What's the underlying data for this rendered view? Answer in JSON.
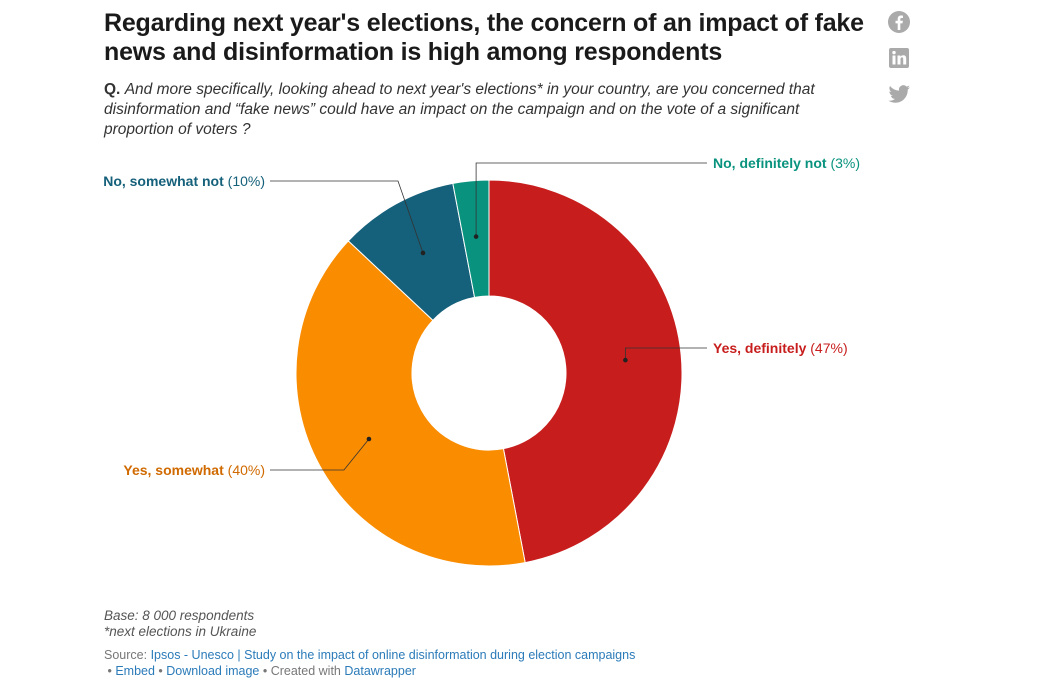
{
  "header": {
    "title": "Regarding next year's elections, the concern of an impact of fake news and disinformation is high among respondents",
    "question_prefix": "Q.",
    "question_text": "And more specifically, looking ahead to next year's elections* in your country, are you concerned that disinformation and “fake news” could have an impact on the campaign and on the vote of a significant proportion of voters ?"
  },
  "social": {
    "facebook_icon": "facebook-icon",
    "linkedin_icon": "linkedin-icon",
    "twitter_icon": "twitter-icon"
  },
  "chart_data": {
    "type": "pie",
    "subtype": "donut",
    "slices": [
      {
        "label": "Yes, definitely",
        "value": 47,
        "value_label": "(47%)",
        "color": "#c71e1d"
      },
      {
        "label": "Yes, somewhat",
        "value": 40,
        "value_label": "(40%)",
        "color": "#fa8c00"
      },
      {
        "label": "No, somewhat not",
        "value": 10,
        "value_label": "(10%)",
        "color": "#15607a"
      },
      {
        "label": "No, definitely not",
        "value": 3,
        "value_label": "(3%)",
        "color": "#09937e"
      }
    ],
    "label_colors": {
      "Yes, definitely": "#c71e1d",
      "Yes, somewhat": "#d06a00",
      "No, somewhat not": "#15607a",
      "No, definitely not": "#09937e"
    }
  },
  "footer": {
    "base": "Base: 8 000 respondents",
    "footnote": "*next elections in Ukraine",
    "source_prefix": "Source: ",
    "source_link": "Ipsos - Unesco | Study on the impact of online disinformation during election campaigns",
    "embed": "Embed",
    "download": "Download image",
    "created_with": "Created with",
    "datawrapper": "Datawrapper"
  }
}
